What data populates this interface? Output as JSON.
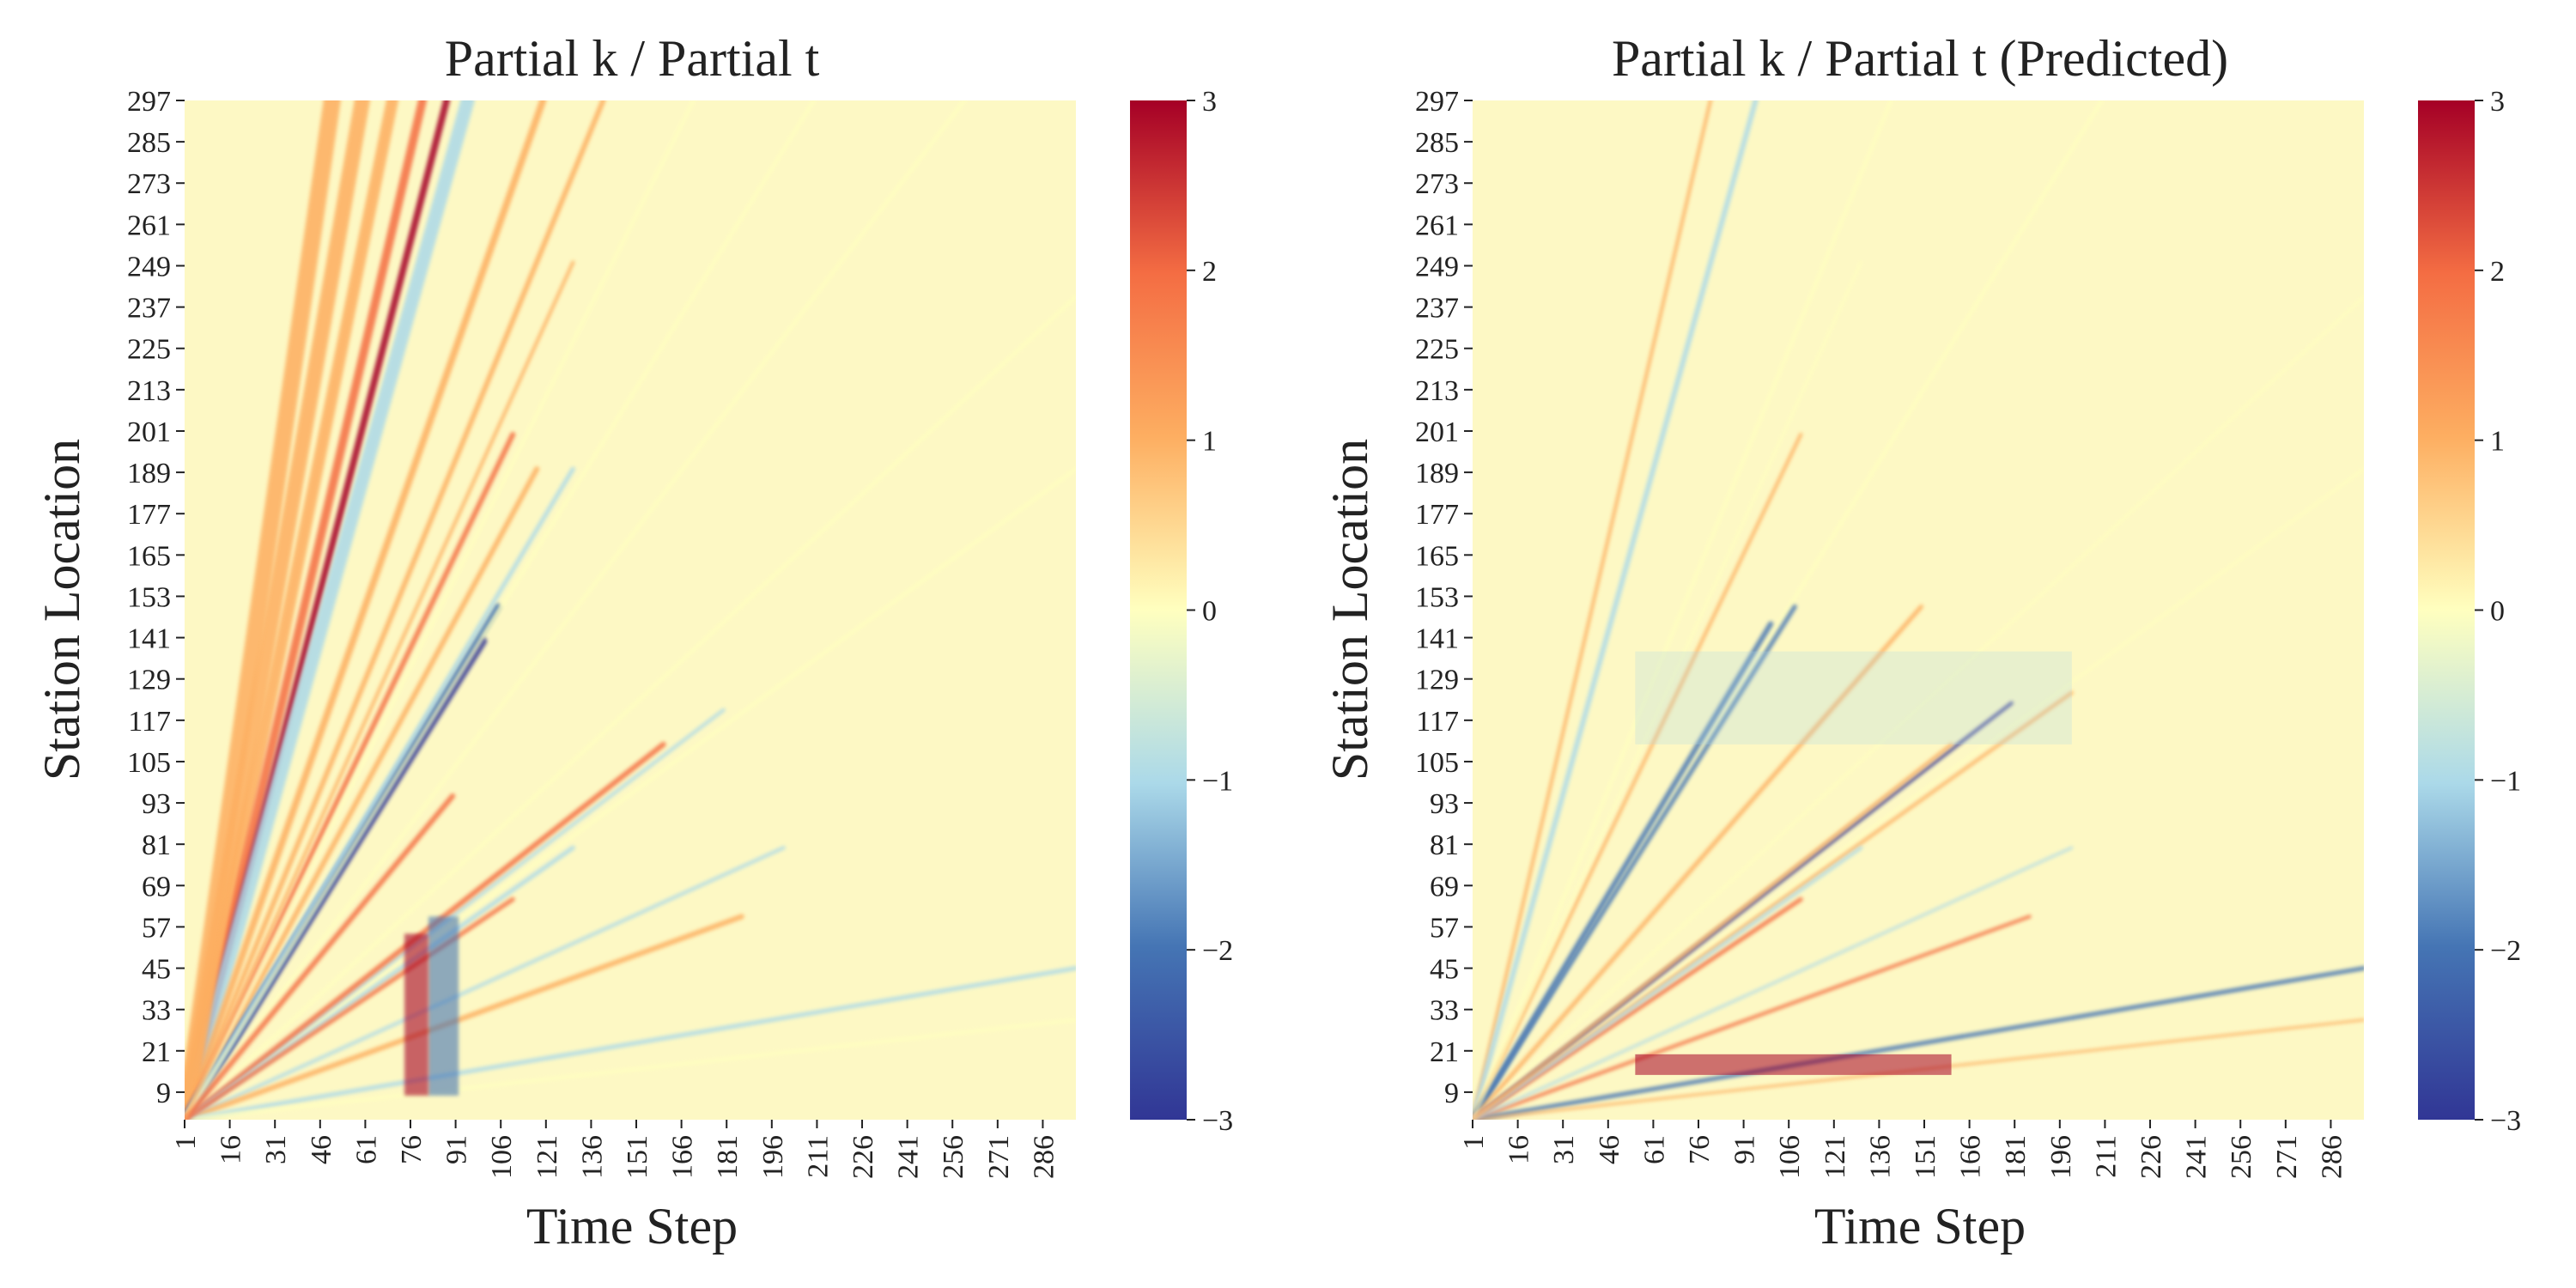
{
  "chart_data": [
    {
      "type": "heatmap",
      "title": "Partial k / Partial t",
      "xlabel": "Time Step",
      "ylabel": "Station Location",
      "x_ticks": [
        "1",
        "16",
        "31",
        "46",
        "61",
        "76",
        "91",
        "106",
        "121",
        "136",
        "151",
        "166",
        "181",
        "196",
        "211",
        "226",
        "241",
        "256",
        "271",
        "286"
      ],
      "y_ticks": [
        "297",
        "285",
        "273",
        "261",
        "249",
        "237",
        "225",
        "213",
        "201",
        "189",
        "177",
        "165",
        "153",
        "141",
        "129",
        "117",
        "105",
        "93",
        "81",
        "69",
        "57",
        "45",
        "33",
        "21",
        "9"
      ],
      "xlim": [
        1,
        297
      ],
      "ylim": [
        1,
        297
      ],
      "colorbar": {
        "min": -3,
        "max": 3,
        "ticks": [
          "3",
          "2",
          "1",
          "0",
          "−1",
          "−2",
          "−3"
        ],
        "colormap": "RdYlBu_r"
      }
    },
    {
      "type": "heatmap",
      "title": "Partial k / Partial t (Predicted)",
      "xlabel": "Time Step",
      "ylabel": "Station Location",
      "x_ticks": [
        "1",
        "16",
        "31",
        "46",
        "61",
        "76",
        "91",
        "106",
        "121",
        "136",
        "151",
        "166",
        "181",
        "196",
        "211",
        "226",
        "241",
        "256",
        "271",
        "286"
      ],
      "y_ticks": [
        "297",
        "285",
        "273",
        "261",
        "249",
        "237",
        "225",
        "213",
        "201",
        "189",
        "177",
        "165",
        "153",
        "141",
        "129",
        "117",
        "105",
        "93",
        "81",
        "69",
        "57",
        "45",
        "33",
        "21",
        "9"
      ],
      "xlim": [
        1,
        297
      ],
      "ylim": [
        1,
        297
      ],
      "colorbar": {
        "min": -3,
        "max": 3,
        "ticks": [
          "3",
          "2",
          "1",
          "0",
          "−1",
          "−2",
          "−3"
        ],
        "colormap": "RdYlBu_r"
      }
    }
  ],
  "colors": {
    "neg3": "#313695",
    "neg2": "#4575b4",
    "neg1": "#abd9e9",
    "zero": "#ffffbf",
    "pos1": "#fdae61",
    "pos2": "#f46d43",
    "pos3": "#a50026"
  }
}
